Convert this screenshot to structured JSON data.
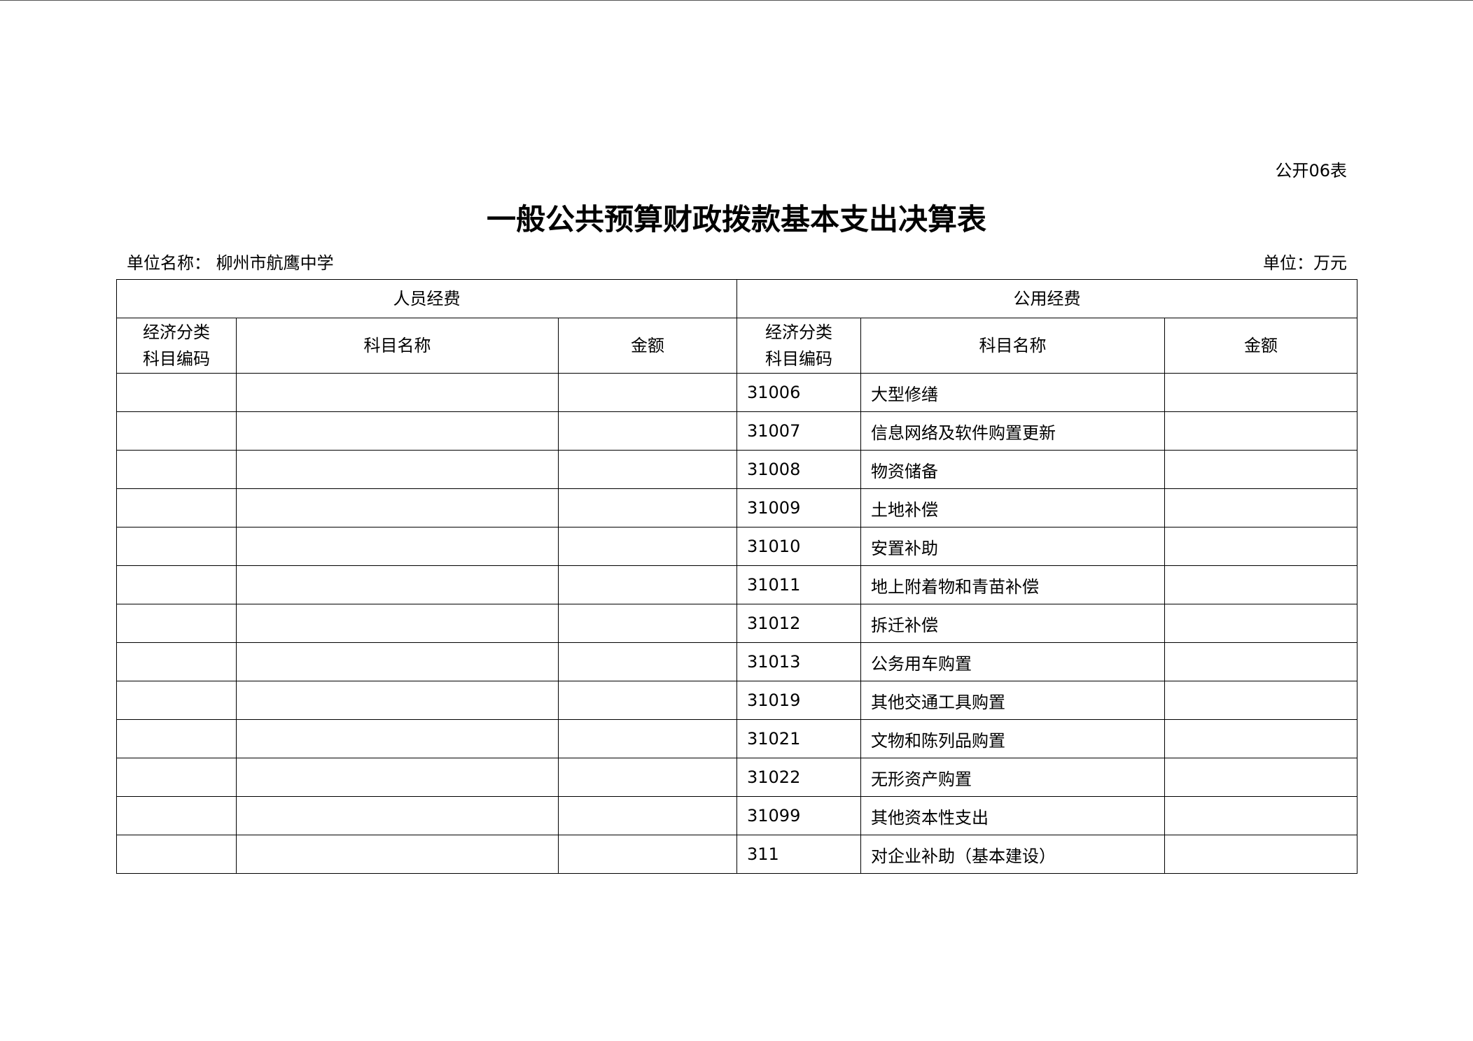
{
  "form_number": "公开06表",
  "title": "一般公共预算财政拨款基本支出决算表",
  "unit_name_label": "单位名称：",
  "unit_name": "柳州市航鹰中学",
  "unit_label": "单位：万元",
  "table": {
    "group_headers": [
      "人员经费",
      "公用经费"
    ],
    "column_headers": [
      [
        "经济分类",
        "科目编码"
      ],
      [
        "科目名称"
      ],
      [
        "金额"
      ],
      [
        "经济分类",
        "科目编码"
      ],
      [
        "科目名称"
      ],
      [
        "金额"
      ]
    ],
    "rows": [
      {
        "code": "31006",
        "name": "大型修缮"
      },
      {
        "code": "31007",
        "name": "信息网络及软件购置更新"
      },
      {
        "code": "31008",
        "name": "物资储备"
      },
      {
        "code": "31009",
        "name": "土地补偿"
      },
      {
        "code": "31010",
        "name": "安置补助"
      },
      {
        "code": "31011",
        "name": "地上附着物和青苗补偿"
      },
      {
        "code": "31012",
        "name": "拆迁补偿"
      },
      {
        "code": "31013",
        "name": "公务用车购置"
      },
      {
        "code": "31019",
        "name": "其他交通工具购置"
      },
      {
        "code": "31021",
        "name": "文物和陈列品购置"
      },
      {
        "code": "31022",
        "name": "无形资产购置"
      },
      {
        "code": "31099",
        "name": "其他资本性支出"
      },
      {
        "code": "311",
        "name": "对企业补助（基本建设）"
      }
    ]
  }
}
